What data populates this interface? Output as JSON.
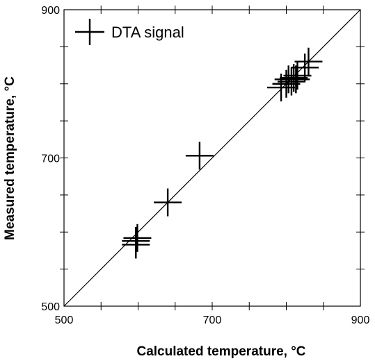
{
  "chart_data": {
    "type": "scatter",
    "xlabel": "Calculated temperature, °C",
    "ylabel": "Measured temperature, °C",
    "xlim": [
      500,
      900
    ],
    "ylim": [
      500,
      900
    ],
    "x_tick_labels": [
      "500",
      "700",
      "900"
    ],
    "y_tick_labels": [
      "500",
      "700",
      "900"
    ],
    "x_tick_values": [
      500,
      700,
      900
    ],
    "y_tick_values": [
      500,
      700,
      900
    ],
    "minor_tick_step": 50,
    "grid": false,
    "reference_line": "y = x",
    "legend": {
      "placement": "top-left",
      "entries": [
        "DTA signal"
      ]
    },
    "series": [
      {
        "name": "DTA signal",
        "marker": "plus",
        "color": "#000000",
        "points": [
          {
            "x": 597,
            "y": 588
          },
          {
            "x": 597,
            "y": 583
          },
          {
            "x": 599,
            "y": 592
          },
          {
            "x": 640,
            "y": 640
          },
          {
            "x": 683,
            "y": 703
          },
          {
            "x": 793,
            "y": 795
          },
          {
            "x": 800,
            "y": 800
          },
          {
            "x": 803,
            "y": 806
          },
          {
            "x": 807,
            "y": 803
          },
          {
            "x": 810,
            "y": 808
          },
          {
            "x": 813,
            "y": 806
          },
          {
            "x": 815,
            "y": 811
          },
          {
            "x": 825,
            "y": 822
          },
          {
            "x": 830,
            "y": 830
          }
        ]
      }
    ]
  }
}
